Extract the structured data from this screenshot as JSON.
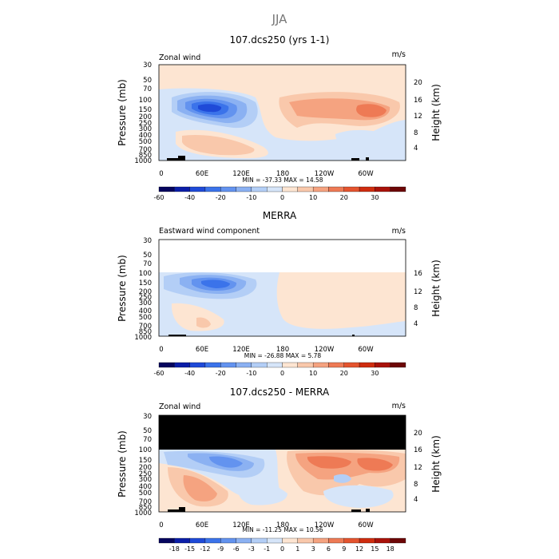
{
  "figure_title": "JJA",
  "colors": {
    "neg": [
      "#06055e",
      "#0b1ea8",
      "#1f4ad8",
      "#3b73ea",
      "#6393ef",
      "#8bb1f2",
      "#b3cef6",
      "#d6e5f9"
    ],
    "pos": [
      "#fde5d2",
      "#f9c8ab",
      "#f5a380",
      "#ee7a55",
      "#e4542f",
      "#cf2d0f",
      "#a9120a",
      "#6d0606"
    ],
    "masked": "#000000",
    "topo": "#000000"
  },
  "chart_data": [
    {
      "type": "heatmap",
      "title": "107.dcs250 (yrs 1-1)",
      "left_label": "Zonal wind",
      "units": "m/s",
      "ylabel": "Pressure (mb)",
      "y2label": "Height (km)",
      "x_ticks": [
        "0",
        "60E",
        "120E",
        "180",
        "120W",
        "60W"
      ],
      "y_ticks": [
        "30",
        "50",
        "70",
        "100",
        "150",
        "200",
        "250",
        "300",
        "400",
        "500",
        "700",
        "850",
        "1000"
      ],
      "y2_ticks": [
        "20",
        "16",
        "12",
        "8",
        "4"
      ],
      "min_max_text": "MIN = -37.33   MAX = 14.58",
      "colorbar_labels": [
        "-60",
        "-40",
        "-20",
        "-10",
        "0",
        "10",
        "20",
        "30"
      ],
      "min": -37.33,
      "max": 14.58
    },
    {
      "type": "heatmap",
      "title": "MERRA",
      "left_label": "Eastward wind component",
      "units": "m/s",
      "ylabel": "Pressure (mb)",
      "y2label": "Height (km)",
      "x_ticks": [
        "0",
        "60E",
        "120E",
        "180",
        "120W",
        "60W"
      ],
      "y_ticks": [
        "30",
        "50",
        "70",
        "100",
        "150",
        "200",
        "250",
        "300",
        "400",
        "500",
        "700",
        "850",
        "1000"
      ],
      "y2_ticks": [
        "16",
        "12",
        "8",
        "4"
      ],
      "min_max_text": "MIN = -26.88   MAX =   5.78",
      "colorbar_labels": [
        "-60",
        "-40",
        "-20",
        "-10",
        "0",
        "10",
        "20",
        "30"
      ],
      "min": -26.88,
      "max": 5.78
    },
    {
      "type": "heatmap",
      "title": "107.dcs250 - MERRA",
      "left_label": "Zonal wind",
      "units": "m/s",
      "ylabel": "Pressure (mb)",
      "y2label": "Height (km)",
      "x_ticks": [
        "0",
        "60E",
        "120E",
        "180",
        "120W",
        "60W"
      ],
      "y_ticks": [
        "30",
        "50",
        "70",
        "100",
        "150",
        "200",
        "250",
        "300",
        "400",
        "500",
        "700",
        "850",
        "1000"
      ],
      "y2_ticks": [
        "20",
        "16",
        "12",
        "8",
        "4"
      ],
      "min_max_text": "MIN = -11.25   MAX =  10.56",
      "colorbar_labels": [
        "-18",
        "-15",
        "-12",
        "-9",
        "-6",
        "-3",
        "-1",
        "0",
        "1",
        "3",
        "6",
        "9",
        "12",
        "15",
        "18"
      ],
      "min": -11.25,
      "max": 10.56
    }
  ]
}
